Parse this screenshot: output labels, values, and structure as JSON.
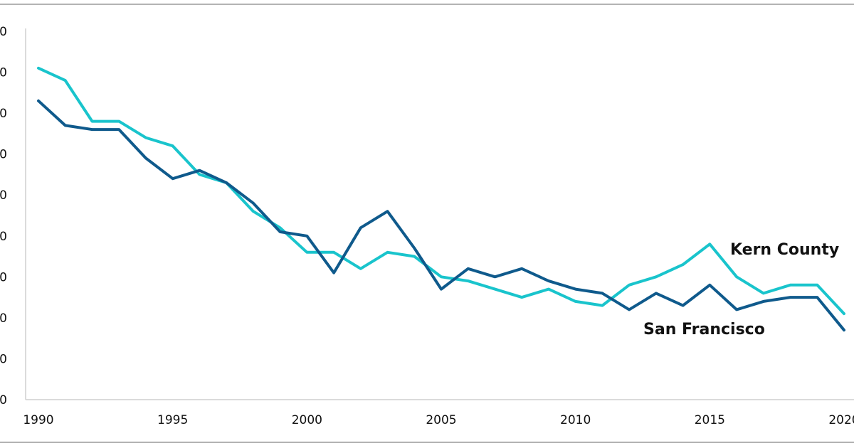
{
  "chart_data": {
    "type": "line",
    "title": "",
    "xlabel": "",
    "ylabel": "",
    "xlim": [
      1990,
      2020
    ],
    "x_ticks": [
      1990,
      1995,
      2000,
      2005,
      2010,
      2015,
      2020
    ],
    "x_tick_labels": [
      "1990",
      "1995",
      "2000",
      "2005",
      "2010",
      "2015",
      "2020"
    ],
    "y_ticks": [
      0,
      1,
      2,
      3,
      4,
      5,
      6,
      7,
      8,
      9
    ],
    "y_tick_labels": [
      "0",
      "0",
      "0",
      "0",
      "0",
      "0",
      "0",
      "0",
      "0",
      "0"
    ],
    "grid": false,
    "x": [
      1990,
      1991,
      1992,
      1993,
      1994,
      1995,
      1996,
      1997,
      1998,
      1999,
      2000,
      2001,
      2002,
      2003,
      2004,
      2005,
      2006,
      2007,
      2008,
      2009,
      2010,
      2011,
      2012,
      2013,
      2014,
      2015,
      2016,
      2017,
      2018,
      2019,
      2020
    ],
    "series": [
      {
        "name": "Kern County",
        "color": "#19c4cc",
        "values": [
          8.1,
          7.8,
          6.8,
          6.8,
          6.4,
          6.2,
          5.5,
          5.3,
          4.6,
          4.2,
          3.6,
          3.6,
          3.2,
          3.6,
          3.5,
          3.0,
          2.9,
          2.7,
          2.5,
          2.7,
          2.4,
          2.3,
          2.8,
          3.0,
          3.3,
          3.8,
          3.0,
          2.6,
          2.8,
          2.8,
          2.1
        ]
      },
      {
        "name": "San Francisco",
        "color": "#0f5a8c",
        "values": [
          7.3,
          6.7,
          6.6,
          6.6,
          5.9,
          5.4,
          5.6,
          5.3,
          4.8,
          4.1,
          4.0,
          3.1,
          4.2,
          4.6,
          3.7,
          2.7,
          3.2,
          3.0,
          3.2,
          2.9,
          2.7,
          2.6,
          2.2,
          2.6,
          2.3,
          2.8,
          2.2,
          2.4,
          2.5,
          2.5,
          1.7
        ]
      }
    ]
  }
}
